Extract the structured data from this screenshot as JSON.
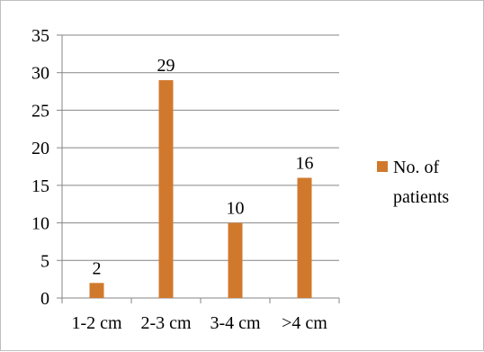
{
  "chart_data": {
    "type": "bar",
    "categories": [
      "1-2 cm",
      "2-3 cm",
      "3-4 cm",
      ">4 cm"
    ],
    "series": [
      {
        "name": "No. of patients",
        "values": [
          2,
          29,
          10,
          16
        ],
        "color": "#d0792d"
      }
    ],
    "data_labels": [
      "2",
      "29",
      "10",
      "16"
    ],
    "ylim": [
      0,
      35
    ],
    "yticks": [
      "0",
      "5",
      "10",
      "15",
      "20",
      "25",
      "30",
      "35"
    ],
    "title": "",
    "xlabel": "",
    "ylabel": "",
    "grid": "horizontal",
    "legend": {
      "position": "right",
      "line1": "No. of",
      "line2": "patients"
    }
  }
}
